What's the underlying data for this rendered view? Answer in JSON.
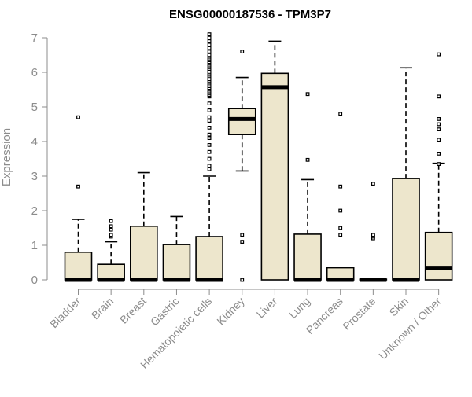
{
  "chart_data": {
    "type": "boxplot",
    "title": "ENSG00000187536 - TPM3P7",
    "xlabel": "",
    "ylabel": "Expression",
    "ylim": [
      0,
      7
    ],
    "yticks": [
      0,
      1,
      2,
      3,
      4,
      5,
      6,
      7
    ],
    "grid": false,
    "legend": "none",
    "box_fill": "#ede6cc",
    "axis_color": "#8c8c8c",
    "categories": [
      "Bladder",
      "Brain",
      "Breast",
      "Gastric",
      "Hematopoietic cells",
      "Kidney",
      "Liver",
      "Lung",
      "Pancreas",
      "Prostate",
      "Skin",
      "Unknown / Other"
    ],
    "boxes": [
      {
        "q1": 0,
        "median": 0,
        "q3": 0.8,
        "whisker_low": 0,
        "whisker_high": 1.75,
        "outliers": [
          2.7,
          4.7
        ]
      },
      {
        "q1": 0,
        "median": 0,
        "q3": 0.45,
        "whisker_low": 0,
        "whisker_high": 1.1,
        "outliers": [
          1.25,
          1.3,
          1.45,
          1.55,
          1.7
        ]
      },
      {
        "q1": 0,
        "median": 0,
        "q3": 1.55,
        "whisker_low": 0,
        "whisker_high": 3.1,
        "outliers": []
      },
      {
        "q1": 0,
        "median": 0,
        "q3": 1.02,
        "whisker_low": 0,
        "whisker_high": 1.83,
        "outliers": []
      },
      {
        "q1": 0,
        "median": 0,
        "q3": 1.25,
        "whisker_low": 0,
        "whisker_high": 3.0,
        "outliers": [
          3.2,
          3.3,
          3.5,
          3.7,
          3.9,
          4.1,
          4.2,
          4.4,
          4.6,
          4.7,
          4.9,
          5.1,
          5.3,
          5.35,
          5.4,
          5.45,
          5.5,
          5.55,
          5.6,
          5.65,
          5.7,
          5.75,
          5.8,
          5.85,
          5.9,
          5.95,
          6.0,
          6.05,
          6.1,
          6.15,
          6.2,
          6.25,
          6.3,
          6.35,
          6.4,
          6.45,
          6.5,
          6.6,
          6.7,
          6.8,
          6.9,
          7.0,
          7.1
        ]
      },
      {
        "q1": 4.2,
        "median": 4.65,
        "q3": 4.95,
        "whisker_low": 3.15,
        "whisker_high": 5.85,
        "outliers": [
          6.6,
          1.3,
          1.1,
          0
        ]
      },
      {
        "q1": 0,
        "median": 5.57,
        "q3": 5.97,
        "whisker_low": 0,
        "whisker_high": 6.9,
        "outliers": []
      },
      {
        "q1": 0,
        "median": 0,
        "q3": 1.32,
        "whisker_low": 0,
        "whisker_high": 2.9,
        "outliers": [
          3.47,
          5.37
        ]
      },
      {
        "q1": 0,
        "median": 0,
        "q3": 0.35,
        "whisker_low": 0,
        "whisker_high": 0.35,
        "outliers": [
          1.3,
          1.5,
          2.0,
          2.7,
          4.8
        ]
      },
      {
        "q1": 0,
        "median": 0,
        "q3": 0.02,
        "whisker_low": 0,
        "whisker_high": 0.02,
        "outliers": [
          1.2,
          1.25,
          1.3,
          2.78
        ]
      },
      {
        "q1": 0,
        "median": 0,
        "q3": 2.93,
        "whisker_low": 0,
        "whisker_high": 6.13,
        "outliers": []
      },
      {
        "q1": 0,
        "median": 0.35,
        "q3": 1.37,
        "whisker_low": 0,
        "whisker_high": 3.37,
        "outliers": [
          3.35,
          3.65,
          4.05,
          4.35,
          4.5,
          4.65,
          5.3,
          6.52
        ]
      }
    ]
  }
}
